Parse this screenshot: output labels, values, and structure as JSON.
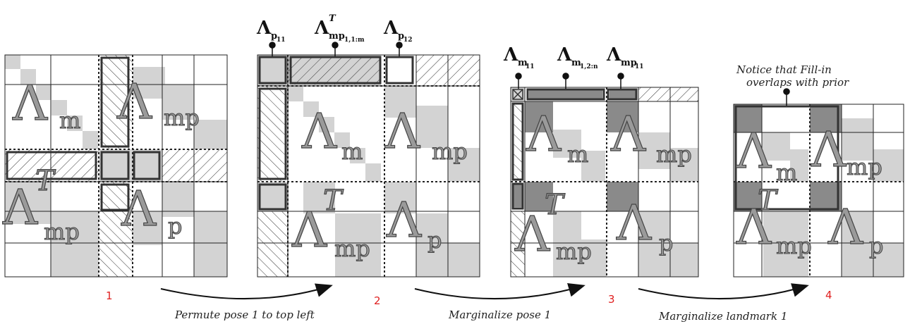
{
  "steps": [
    {
      "number": "1",
      "caption": "Permute pose 1 to top left"
    },
    {
      "number": "2",
      "caption": "Marginalize pose 1"
    },
    {
      "number": "3",
      "caption": "Marginalize landmark 1"
    },
    {
      "number": "4",
      "caption": ""
    }
  ],
  "symbols": {
    "lambda": "Λ",
    "m": "m",
    "mp": "mp",
    "p": "p",
    "T": "T"
  },
  "top_labels_2": [
    {
      "main": "Λ",
      "sub": "p",
      "subsub": "11",
      "sup": ""
    },
    {
      "main": "Λ",
      "sub": "mp",
      "subsub": "1,1:m",
      "sup": "T"
    },
    {
      "main": "Λ",
      "sub": "p",
      "subsub": "12",
      "sup": ""
    }
  ],
  "top_labels_3": [
    {
      "main": "Λ",
      "sub": "m",
      "subsub": "11"
    },
    {
      "main": "Λ",
      "sub": "m",
      "subsub": "1,2:n"
    },
    {
      "main": "Λ",
      "sub": "mp",
      "subsub": "11"
    }
  ],
  "note_4": [
    "Notice that Fill-in",
    "overlaps with prior"
  ],
  "colors": {
    "light": "#d3d3d3",
    "dark": "#8a8a8a",
    "accent": "#e02020"
  }
}
